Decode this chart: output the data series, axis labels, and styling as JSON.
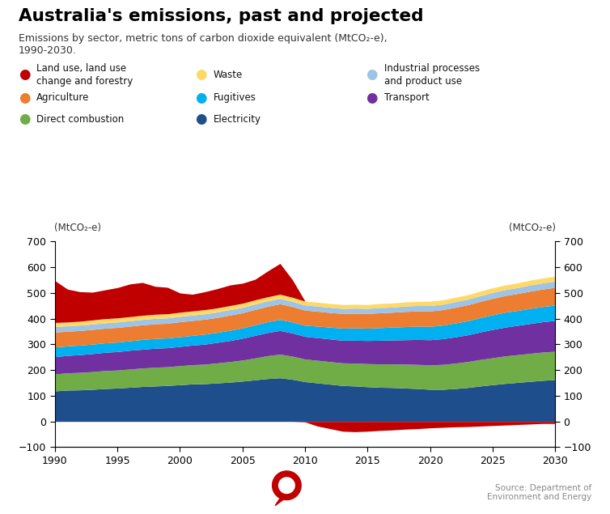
{
  "title": "Australia's emissions, past and projected",
  "subtitle": "Emissions by sector, metric tons of carbon dioxide equivalent (MtCO₂-e),\n1990-2030.",
  "ylabel_left": "(MtCO₂-e)",
  "ylabel_right": "(MtCO₂-e)",
  "source": "Source: Department of\nEnvironment and Energy",
  "ylim": [
    -100,
    700
  ],
  "yticks": [
    -100,
    0,
    100,
    200,
    300,
    400,
    500,
    600,
    700
  ],
  "years": [
    1990,
    1991,
    1992,
    1993,
    1994,
    1995,
    1996,
    1997,
    1998,
    1999,
    2000,
    2001,
    2002,
    2003,
    2004,
    2005,
    2006,
    2007,
    2008,
    2009,
    2010,
    2011,
    2012,
    2013,
    2014,
    2015,
    2016,
    2017,
    2018,
    2019,
    2020,
    2021,
    2022,
    2023,
    2024,
    2025,
    2026,
    2027,
    2028,
    2029,
    2030
  ],
  "series": {
    "Electricity": {
      "color": "#1f4e8c",
      "values": [
        119,
        122,
        123,
        125,
        128,
        130,
        133,
        136,
        138,
        140,
        143,
        146,
        147,
        150,
        153,
        157,
        162,
        167,
        170,
        164,
        155,
        150,
        145,
        140,
        138,
        135,
        133,
        132,
        130,
        128,
        125,
        125,
        128,
        132,
        138,
        143,
        148,
        152,
        156,
        160,
        163
      ]
    },
    "Direct combustion": {
      "color": "#70ad47",
      "values": [
        66,
        67,
        68,
        69,
        70,
        70,
        71,
        72,
        73,
        73,
        74,
        75,
        76,
        78,
        80,
        82,
        85,
        89,
        92,
        90,
        88,
        88,
        88,
        88,
        89,
        90,
        91,
        92,
        93,
        94,
        95,
        97,
        99,
        101,
        103,
        105,
        107,
        108,
        109,
        110,
        110
      ]
    },
    "Transport": {
      "color": "#7030a0",
      "values": [
        67,
        68,
        69,
        70,
        71,
        72,
        73,
        73,
        74,
        74,
        75,
        76,
        78,
        80,
        82,
        85,
        88,
        90,
        92,
        90,
        88,
        88,
        88,
        88,
        89,
        90,
        92,
        93,
        95,
        97,
        98,
        100,
        102,
        104,
        107,
        110,
        112,
        114,
        116,
        118,
        120
      ]
    },
    "Fugitives": {
      "color": "#00b0f0",
      "values": [
        38,
        37,
        37,
        37,
        37,
        37,
        37,
        38,
        38,
        38,
        38,
        38,
        39,
        39,
        40,
        40,
        41,
        42,
        43,
        43,
        43,
        45,
        46,
        47,
        48,
        48,
        49,
        50,
        51,
        52,
        52,
        53,
        54,
        55,
        56,
        57,
        58,
        58,
        59,
        59,
        60
      ]
    },
    "Agriculture": {
      "color": "#ed7d31",
      "values": [
        58,
        57,
        57,
        57,
        57,
        57,
        57,
        57,
        57,
        57,
        58,
        58,
        58,
        58,
        59,
        59,
        60,
        60,
        61,
        60,
        59,
        58,
        57,
        57,
        57,
        57,
        58,
        58,
        59,
        59,
        60,
        60,
        61,
        62,
        63,
        64,
        65,
        66,
        67,
        68,
        69
      ]
    },
    "Industrial processes": {
      "color": "#9dc3e6",
      "values": [
        22,
        21,
        21,
        21,
        21,
        21,
        21,
        21,
        21,
        21,
        21,
        21,
        21,
        21,
        21,
        21,
        21,
        21,
        21,
        20,
        20,
        20,
        20,
        20,
        20,
        20,
        20,
        20,
        21,
        21,
        21,
        21,
        22,
        22,
        22,
        23,
        23,
        23,
        24,
        24,
        24
      ]
    },
    "Waste": {
      "color": "#ffd966",
      "values": [
        15,
        15,
        15,
        16,
        16,
        16,
        16,
        16,
        16,
        16,
        16,
        16,
        16,
        16,
        16,
        16,
        16,
        16,
        16,
        16,
        15,
        15,
        15,
        15,
        15,
        15,
        16,
        16,
        16,
        16,
        17,
        17,
        17,
        17,
        18,
        18,
        18,
        18,
        19,
        19,
        19
      ]
    },
    "Land use": {
      "color": "#c00000",
      "values": [
        163,
        128,
        115,
        108,
        112,
        118,
        127,
        128,
        109,
        103,
        75,
        65,
        70,
        75,
        80,
        78,
        80,
        100,
        120,
        68,
        -2,
        -18,
        -28,
        -38,
        -40,
        -38,
        -35,
        -33,
        -30,
        -28,
        -25,
        -23,
        -21,
        -20,
        -18,
        -16,
        -14,
        -12,
        -10,
        -8,
        -8
      ]
    }
  },
  "stack_order": [
    "Electricity",
    "Direct combustion",
    "Transport",
    "Fugitives",
    "Agriculture",
    "Industrial processes",
    "Waste"
  ],
  "legend_data": [
    [
      0,
      0,
      "Land use, land use\nchange and forestry",
      "#c00000"
    ],
    [
      1,
      0,
      "Waste",
      "#ffd966"
    ],
    [
      2,
      0,
      "Industrial processes\nand product use",
      "#9dc3e6"
    ],
    [
      0,
      1,
      "Agriculture",
      "#ed7d31"
    ],
    [
      1,
      1,
      "Fugitives",
      "#00b0f0"
    ],
    [
      2,
      1,
      "Transport",
      "#7030a0"
    ],
    [
      0,
      2,
      "Direct combustion",
      "#70ad47"
    ],
    [
      1,
      2,
      "Electricity",
      "#1f4e8c"
    ]
  ],
  "background_color": "#ffffff",
  "dashed_line_year": 2012,
  "xticks": [
    1990,
    1995,
    2000,
    2005,
    2010,
    2015,
    2020,
    2025,
    2030
  ],
  "logo_color": "#c00000"
}
